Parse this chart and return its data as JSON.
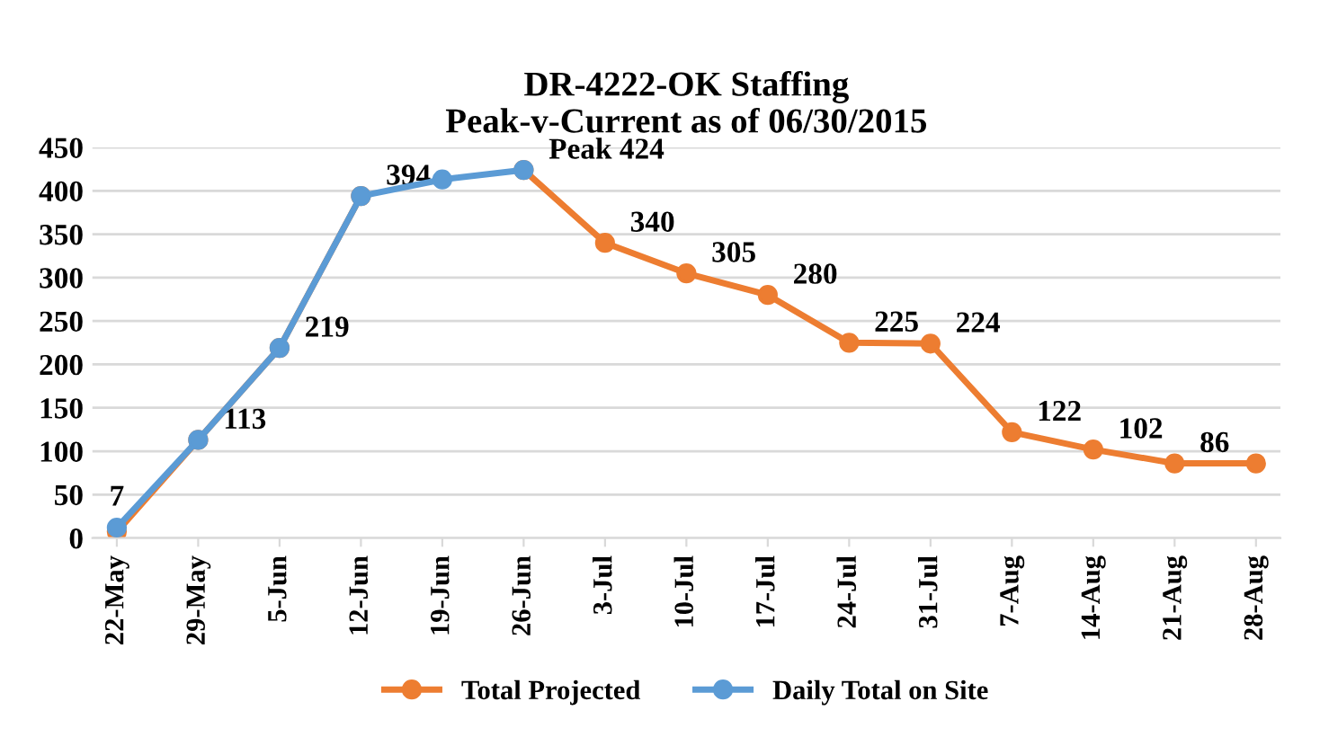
{
  "chart_data": {
    "type": "line",
    "title": "DR-4222-OK Staffing\nPeak-v-Current as of 06/30/2015",
    "categories": [
      "22-May",
      "29-May",
      "5-Jun",
      "12-Jun",
      "19-Jun",
      "26-Jun",
      "3-Jul",
      "10-Jul",
      "17-Jul",
      "24-Jul",
      "31-Jul",
      "7-Aug",
      "14-Aug",
      "21-Aug",
      "28-Aug"
    ],
    "series": [
      {
        "name": "Total Projected",
        "color": "#ed7d31",
        "values": [
          7,
          113,
          219,
          394,
          null,
          424,
          340,
          305,
          280,
          225,
          224,
          122,
          102,
          86,
          86
        ],
        "value_labels": [
          "7",
          "113",
          "219",
          "394",
          null,
          "Peak 424",
          "340",
          "305",
          "280",
          "225",
          "224",
          "122",
          "102",
          "86",
          null
        ]
      },
      {
        "name": "Daily Total on Site",
        "color": "#5b9bd5",
        "values": [
          12,
          113,
          219,
          394,
          413,
          424,
          null,
          null,
          null,
          null,
          null,
          null,
          null,
          null,
          null
        ]
      }
    ],
    "ylim": [
      0,
      450
    ],
    "yticks": [
      0,
      50,
      100,
      150,
      200,
      250,
      300,
      350,
      400,
      450
    ],
    "grid": "y",
    "legend": "bottom",
    "marker": "circle",
    "line_style": "solid"
  }
}
